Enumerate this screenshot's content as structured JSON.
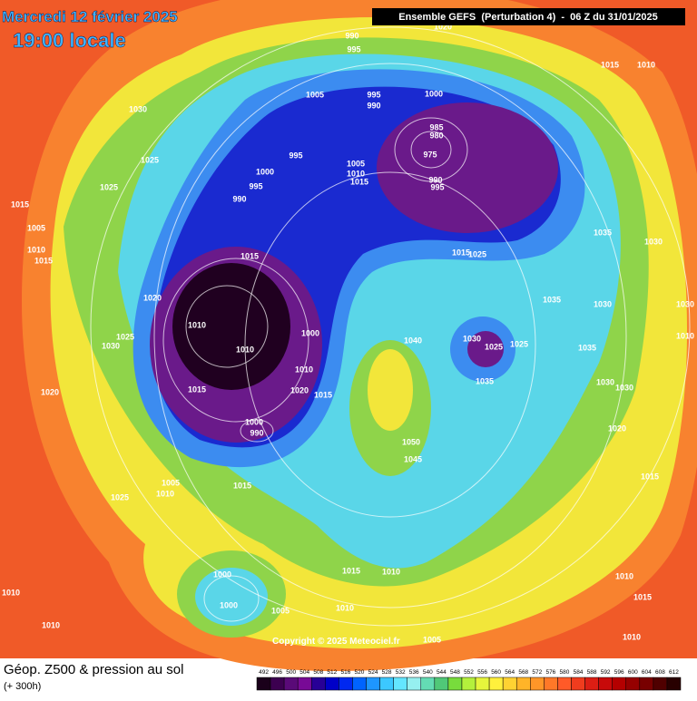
{
  "header": {
    "date": "Mercredi 12 février 2025",
    "time": "19:00 locale",
    "run": "Ensemble GEFS  (Perturbation 4)  -  06 Z du 31/01/2025"
  },
  "map": {
    "copyright": "Copyright © 2025 Meteociel.fr",
    "isobar_labels": [
      990,
      995,
      1005,
      1030,
      1025,
      1025,
      1015,
      1005,
      1010,
      1015,
      995,
      990,
      1000,
      985,
      980,
      975,
      990,
      995,
      995,
      1000,
      995,
      990,
      1005,
      1010,
      1015,
      1015,
      1020,
      1010,
      1010,
      1025,
      1030,
      1015,
      1000,
      1010,
      1020,
      1015,
      1000,
      990,
      1020,
      1040,
      1030,
      1025,
      1025,
      1035,
      1035,
      1030,
      1035,
      1030,
      1030,
      1020,
      1050,
      1045,
      1015,
      1005,
      1010,
      1025,
      1015,
      1030,
      1035,
      1030,
      1010,
      1015,
      1010,
      1020,
      1015,
      1010,
      1000,
      1000,
      1005,
      1010,
      1005,
      1010,
      1010,
      1010,
      1015,
      1010,
      1025,
      1015
    ]
  },
  "footer": {
    "title": "Géop. Z500 & pression au sol",
    "lead": "(+ 300h)",
    "colorbar": {
      "values": [
        492,
        496,
        500,
        504,
        508,
        512,
        516,
        520,
        524,
        528,
        532,
        536,
        540,
        544,
        548,
        552,
        556,
        560,
        564,
        568,
        572,
        576,
        580,
        584,
        588,
        592,
        596,
        600,
        604,
        608,
        612
      ],
      "colors": [
        "#1a001a",
        "#3c0050",
        "#5a0a78",
        "#780a96",
        "#280096",
        "#0000c8",
        "#0028f0",
        "#0064ff",
        "#1e96ff",
        "#3cc8ff",
        "#64e6ff",
        "#96f0f0",
        "#64dcb4",
        "#50c878",
        "#78dc3c",
        "#b4f03c",
        "#e6f53c",
        "#fff03c",
        "#ffd232",
        "#ffb428",
        "#ff9628",
        "#ff7828",
        "#ff5a28",
        "#f03c1e",
        "#dc1e14",
        "#c80a0a",
        "#b40000",
        "#960000",
        "#780000",
        "#500000",
        "#280000"
      ]
    }
  }
}
